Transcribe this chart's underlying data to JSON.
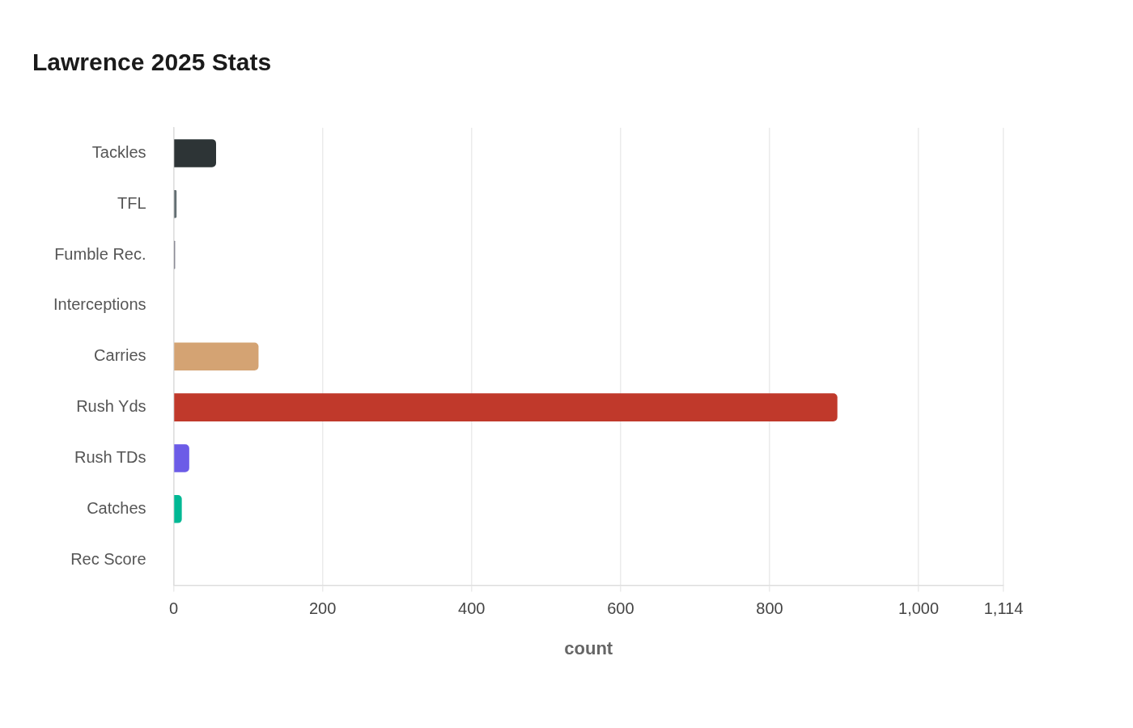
{
  "chart_data": {
    "type": "bar",
    "orientation": "horizontal",
    "title": "Lawrence 2025 Stats",
    "xlabel": "count",
    "categories": [
      "Tackles",
      "TFL",
      "Fumble Rec.",
      "Interceptions",
      "Carries",
      "Rush Yds",
      "Rush TDs",
      "Catches",
      "Rec Score"
    ],
    "values": [
      57,
      4,
      2,
      null,
      114,
      891,
      21,
      11,
      null
    ],
    "colors": [
      "#2d3436",
      "#636e72",
      "#6c6c7a",
      "#b2bec3",
      "#d4a373",
      "#c0392b",
      "#6c5ce7",
      "#00b894",
      "#b2bec3"
    ],
    "xlim": [
      0,
      1114
    ],
    "xticks": [
      0,
      200,
      400,
      600,
      800,
      {
        "value": 1000,
        "label": "1,000"
      },
      {
        "value": 1114,
        "label": "1,114"
      }
    ],
    "grid": "x",
    "legend": false
  }
}
